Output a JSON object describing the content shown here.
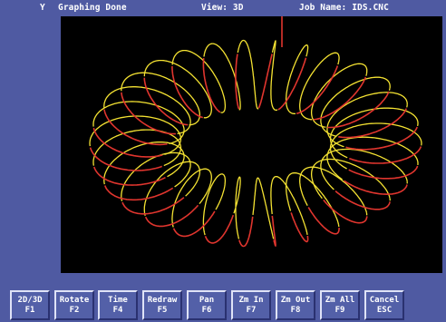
{
  "status_bar": {
    "mode": "Y",
    "message": "Graphing Done",
    "view": "View: 3D",
    "job": "Job Name: IDS.CNC"
  },
  "colors": {
    "screen_bg": "#4f5aa2",
    "viewport_bg": "#000000",
    "toolpath_primary": "#f4e232",
    "toolpath_secondary": "#e0352e",
    "text": "#ffffff"
  },
  "function_keys": [
    {
      "label": "2D/3D",
      "key": "F1"
    },
    {
      "label": "Rotate",
      "key": "F2"
    },
    {
      "label": "Time",
      "key": "F4"
    },
    {
      "label": "Redraw",
      "key": "F5"
    },
    {
      "label": "Pan",
      "key": "F6"
    },
    {
      "label": "Zm In",
      "key": "F7"
    },
    {
      "label": "Zm Out",
      "key": "F8"
    },
    {
      "label": "Zm All",
      "key": "F9"
    },
    {
      "label": "Cancel",
      "key": "ESC"
    }
  ]
}
